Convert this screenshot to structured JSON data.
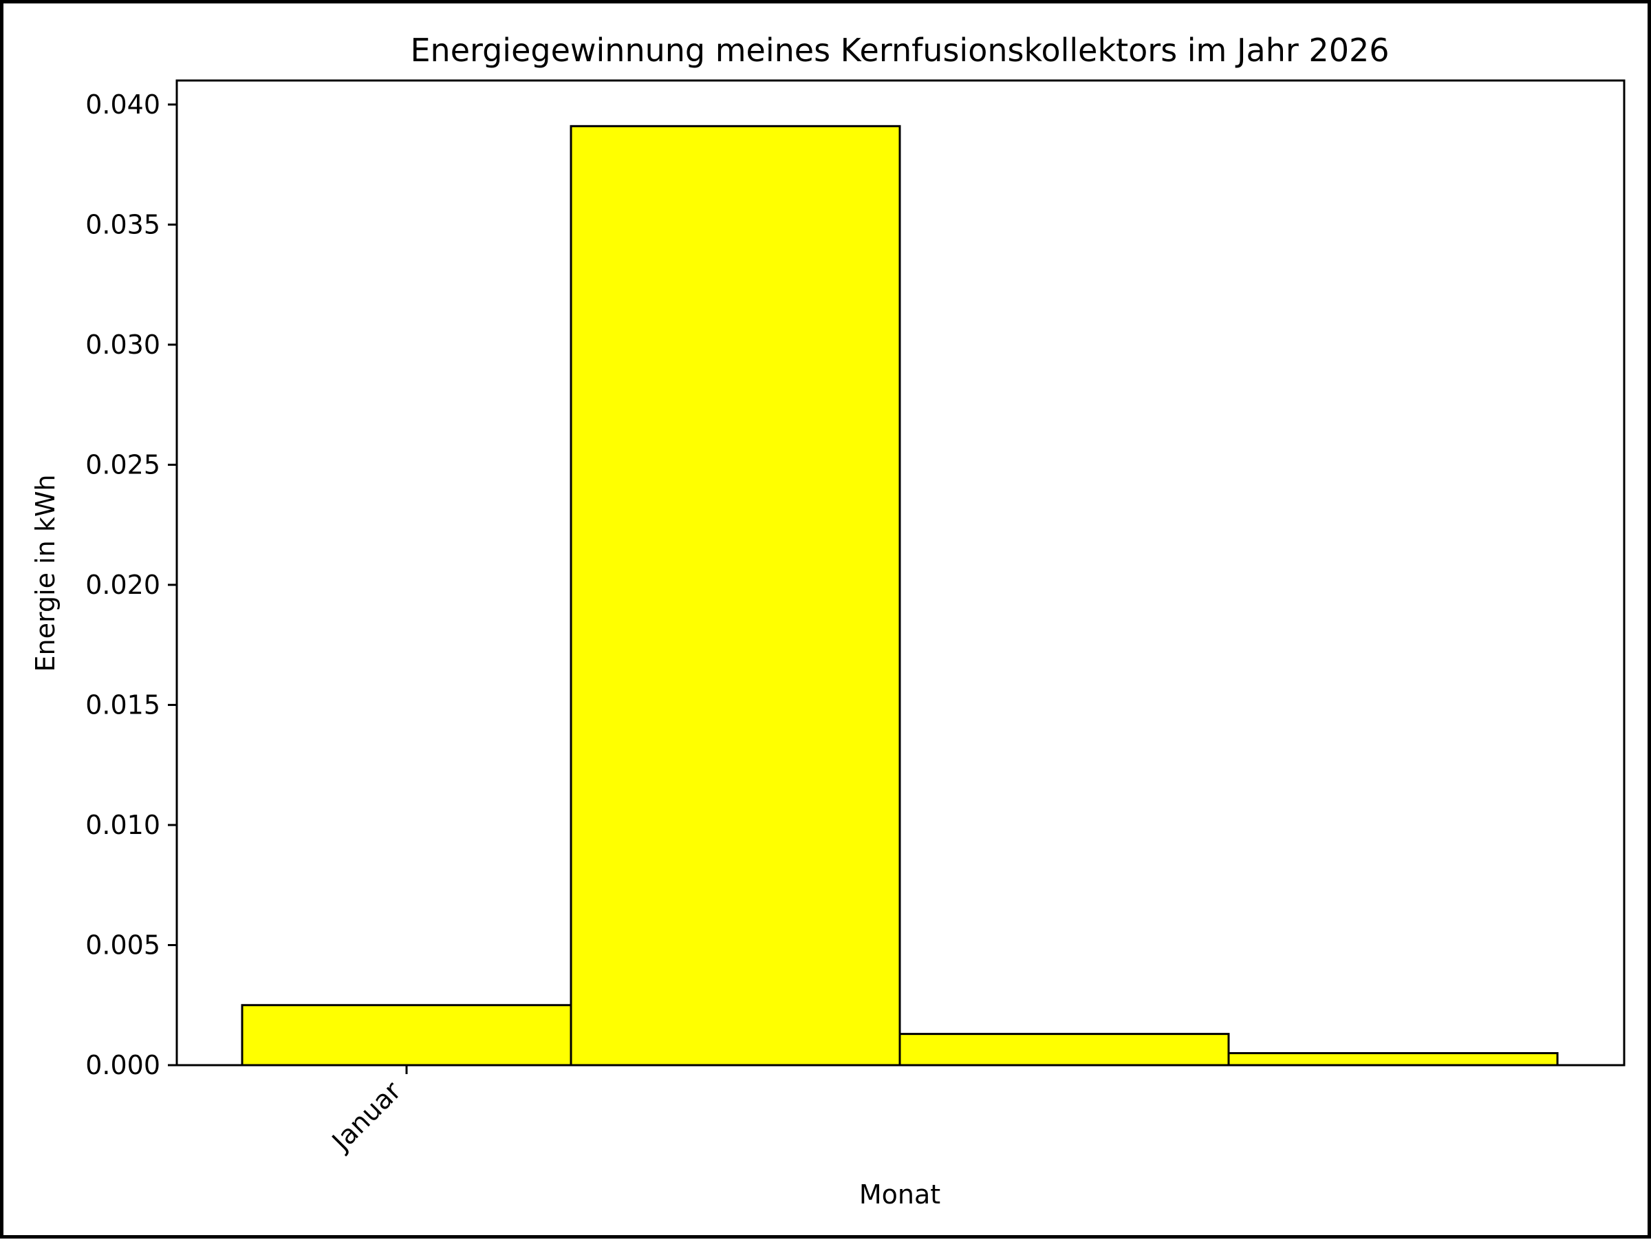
{
  "chart_data": {
    "type": "bar",
    "title": "Energiegewinnung meines Kernfusionskollektors im Jahr 2026",
    "xlabel": "Monat",
    "ylabel": "Energie in kWh",
    "categories": [
      "Januar",
      "",
      "",
      ""
    ],
    "values": [
      0.0025,
      0.0391,
      0.0013,
      0.0005
    ],
    "ylim": [
      0,
      0.041
    ],
    "yticks": [
      "0.000",
      "0.005",
      "0.010",
      "0.015",
      "0.020",
      "0.025",
      "0.030",
      "0.035",
      "0.040"
    ],
    "bar_color": "#ffff00",
    "edge_color": "#000000",
    "grid": false,
    "legend": "none"
  }
}
